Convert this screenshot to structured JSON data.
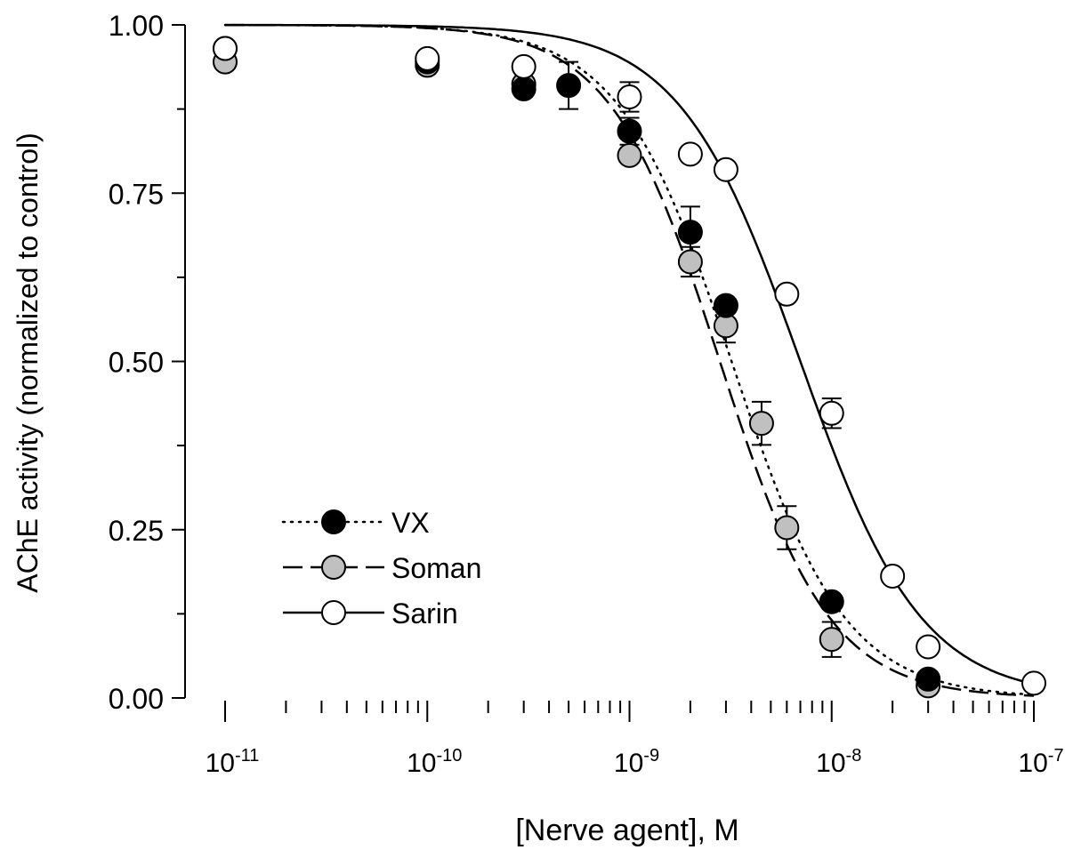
{
  "chart_data": {
    "type": "scatter",
    "title": "",
    "xlabel": "[Nerve agent], M",
    "ylabel": "AChE activity (normalized to control)",
    "x_scale": "log",
    "xlim": [
      1e-11,
      1e-07
    ],
    "ylim": [
      0,
      1
    ],
    "grid": false,
    "legend_position": "bottom-left",
    "x_ticks": [
      {
        "base": "10",
        "exp": "-11",
        "value": 1e-11
      },
      {
        "base": "10",
        "exp": "-10",
        "value": 1e-10
      },
      {
        "base": "10",
        "exp": "-9",
        "value": 1e-09
      },
      {
        "base": "10",
        "exp": "-8",
        "value": 1e-08
      },
      {
        "base": "10",
        "exp": "-7",
        "value": 1e-07
      }
    ],
    "y_ticks": [
      "0.00",
      "0.25",
      "0.50",
      "0.75",
      "1.00"
    ],
    "series": [
      {
        "name": "VX",
        "marker_fill": "#000000",
        "line_style": "dotted",
        "fit": {
          "ic50": 3.2e-09,
          "hill": 1.55
        },
        "points": [
          {
            "x": 1e-11,
            "y": 0.965,
            "err": 0.0
          },
          {
            "x": 1e-10,
            "y": 0.945,
            "err": 0.0
          },
          {
            "x": 3e-10,
            "y": 0.905,
            "err": 0.0
          },
          {
            "x": 5e-10,
            "y": 0.91,
            "err": 0.035
          },
          {
            "x": 1e-09,
            "y": 0.842,
            "err": 0.02
          },
          {
            "x": 2e-09,
            "y": 0.692,
            "err": 0.038
          },
          {
            "x": 3e-09,
            "y": 0.583,
            "err": 0.0
          },
          {
            "x": 1e-08,
            "y": 0.143,
            "err": 0.0
          },
          {
            "x": 3e-08,
            "y": 0.028,
            "err": 0.0
          }
        ]
      },
      {
        "name": "Soman",
        "marker_fill": "#c0c0c0",
        "line_style": "dashed",
        "fit": {
          "ic50": 2.8e-09,
          "hill": 1.6
        },
        "points": [
          {
            "x": 1e-11,
            "y": 0.945,
            "err": 0.0
          },
          {
            "x": 1e-10,
            "y": 0.94,
            "err": 0.0
          },
          {
            "x": 3e-10,
            "y": 0.912,
            "err": 0.0
          },
          {
            "x": 1e-09,
            "y": 0.806,
            "err": 0.0
          },
          {
            "x": 2e-09,
            "y": 0.648,
            "err": 0.022
          },
          {
            "x": 3e-09,
            "y": 0.553,
            "err": 0.025
          },
          {
            "x": 4.5e-09,
            "y": 0.408,
            "err": 0.032
          },
          {
            "x": 6e-09,
            "y": 0.253,
            "err": 0.032
          },
          {
            "x": 1e-08,
            "y": 0.087,
            "err": 0.026
          },
          {
            "x": 3e-08,
            "y": 0.018,
            "err": 0.0
          }
        ]
      },
      {
        "name": "Sarin",
        "marker_fill": "#ffffff",
        "line_style": "solid",
        "fit": {
          "ic50": 7e-09,
          "hill": 1.45
        },
        "points": [
          {
            "x": 1e-11,
            "y": 0.965,
            "err": 0.0
          },
          {
            "x": 1e-10,
            "y": 0.95,
            "err": 0.0
          },
          {
            "x": 3e-10,
            "y": 0.938,
            "err": 0.0
          },
          {
            "x": 1e-09,
            "y": 0.893,
            "err": 0.022
          },
          {
            "x": 2e-09,
            "y": 0.808,
            "err": 0.0
          },
          {
            "x": 3e-09,
            "y": 0.785,
            "err": 0.0
          },
          {
            "x": 6e-09,
            "y": 0.6,
            "err": 0.0
          },
          {
            "x": 1e-08,
            "y": 0.423,
            "err": 0.022
          },
          {
            "x": 2e-08,
            "y": 0.181,
            "err": 0.0
          },
          {
            "x": 3e-08,
            "y": 0.076,
            "err": 0.0
          },
          {
            "x": 1e-07,
            "y": 0.022,
            "err": 0.0
          }
        ]
      }
    ]
  }
}
